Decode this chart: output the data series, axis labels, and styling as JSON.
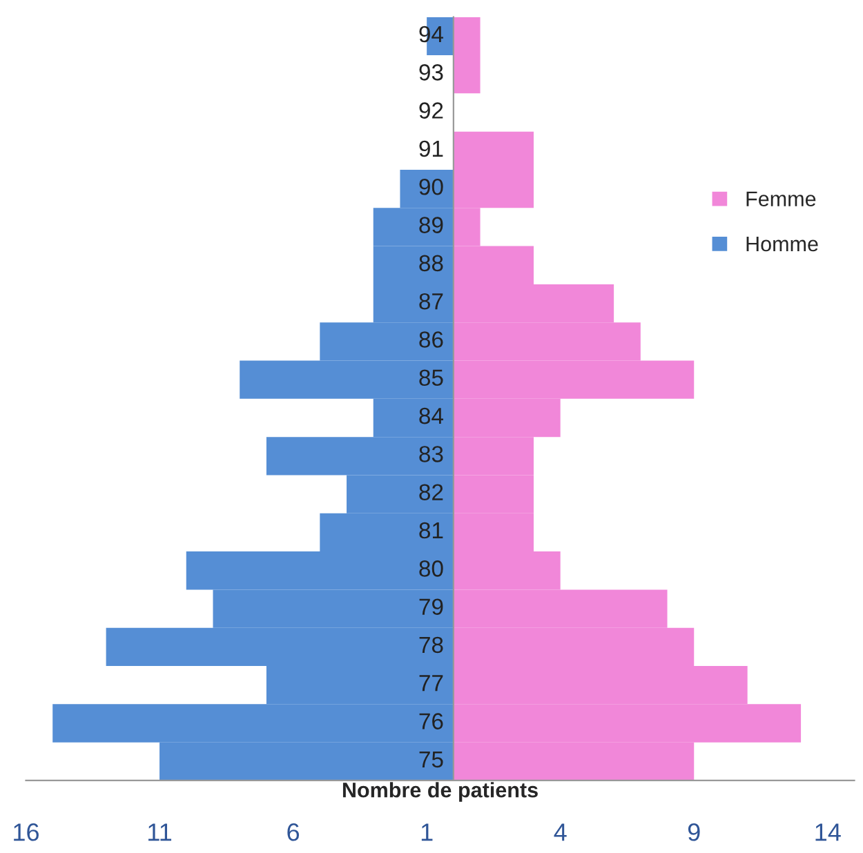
{
  "chart_data": {
    "type": "bar",
    "orientation": "horizontal",
    "xlabel": "Nombre de patients",
    "categories": [
      "94",
      "93",
      "92",
      "91",
      "90",
      "89",
      "88",
      "87",
      "86",
      "85",
      "84",
      "83",
      "82",
      "81",
      "80",
      "79",
      "78",
      "77",
      "76",
      "75"
    ],
    "series": [
      {
        "name": "Femme",
        "color": "#f187d9",
        "values": [
          1,
          1,
          0,
          3,
          3,
          1,
          3,
          6,
          7,
          9,
          4,
          3,
          3,
          3,
          4,
          8,
          9,
          11,
          13,
          9
        ]
      },
      {
        "name": "Homme",
        "color": "#558ed5",
        "values": [
          -1,
          0,
          0,
          0,
          -2,
          -3,
          -3,
          -3,
          -5,
          -8,
          -3,
          -7,
          -4,
          -5,
          -10,
          -9,
          -13,
          -7,
          -15,
          -11
        ]
      }
    ],
    "xlim": [
      -16,
      15
    ],
    "xticks": [
      {
        "value": -16,
        "label": "16"
      },
      {
        "value": -11,
        "label": "11"
      },
      {
        "value": -6,
        "label": "6"
      },
      {
        "value": -1,
        "label": "1"
      },
      4,
      9,
      14
    ],
    "grid": false,
    "legend": "right",
    "stacked": true
  }
}
